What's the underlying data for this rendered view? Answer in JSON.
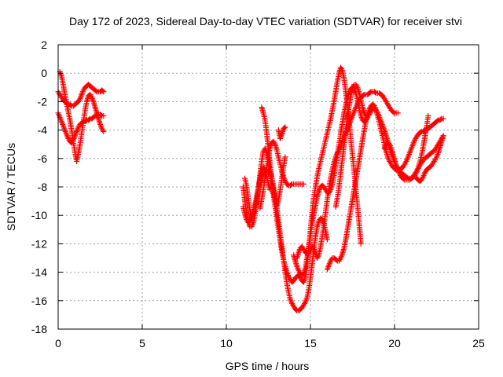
{
  "chart_data": {
    "type": "scatter",
    "title": "Day 172 of 2023, Sidereal Day-to-day VTEC variation (SDTVAR) for receiver stvi",
    "xlabel": "GPS time / hours",
    "ylabel": "SDTVAR / TECUs",
    "xlim": [
      0,
      25
    ],
    "ylim": [
      -18,
      2
    ],
    "xticks": [
      0,
      5,
      10,
      15,
      20,
      25
    ],
    "yticks": [
      2,
      0,
      -2,
      -4,
      -6,
      -8,
      -10,
      -12,
      -14,
      -16,
      -18
    ],
    "grid": true,
    "legend": "none",
    "marker": "plus",
    "color": "#ff0000",
    "series": [
      {
        "x": [
          0.0,
          0.1,
          0.2,
          0.3,
          0.4,
          0.5,
          0.6,
          0.7,
          0.8,
          0.9,
          1.0,
          1.1,
          1.2,
          1.3,
          1.4,
          1.5,
          1.6,
          1.7,
          1.8,
          1.9,
          2.0,
          2.1,
          2.2,
          2.3,
          2.4,
          2.5,
          2.6,
          2.7
        ],
        "y": [
          -1.3,
          -1.5,
          -1.7,
          -1.9,
          -2.0,
          -2.1,
          -2.2,
          -2.2,
          -2.3,
          -2.3,
          -2.2,
          -2.1,
          -2.0,
          -1.8,
          -1.5,
          -1.2,
          -1.0,
          -0.9,
          -0.8,
          -0.9,
          -1.0,
          -1.1,
          -1.2,
          -1.3,
          -1.3,
          -1.3,
          -1.2,
          -1.3
        ]
      },
      {
        "x": [
          0.0,
          0.1,
          0.2,
          0.3,
          0.4,
          0.5,
          0.6,
          0.7,
          0.8,
          0.9,
          1.0,
          1.1,
          1.2,
          1.3,
          1.4,
          1.5,
          1.6,
          1.7,
          1.8,
          1.9,
          2.0,
          2.1,
          2.2,
          2.3,
          2.4,
          2.5,
          2.6,
          2.7
        ],
        "y": [
          -2.8,
          -3.1,
          -3.4,
          -3.7,
          -4.0,
          -4.3,
          -4.6,
          -4.8,
          -4.9,
          -4.7,
          -4.4,
          -4.1,
          -3.8,
          -3.6,
          -3.5,
          -3.4,
          -3.4,
          -3.3,
          -3.3,
          -3.2,
          -3.2,
          -3.1,
          -3.0,
          -3.0,
          -2.9,
          -2.9,
          -3.0,
          -3.0
        ]
      },
      {
        "x": [
          0.1,
          0.2,
          0.3,
          0.4,
          0.5,
          0.6,
          0.7,
          0.8,
          0.9,
          1.0,
          1.1,
          1.2,
          1.3,
          1.4,
          1.5,
          1.6,
          1.7,
          1.8,
          1.9,
          2.0,
          2.1,
          2.2,
          2.3,
          2.4,
          2.5,
          2.6,
          2.7
        ],
        "y": [
          0.1,
          -0.2,
          -0.8,
          -1.5,
          -2.1,
          -2.7,
          -3.3,
          -4.0,
          -4.8,
          -5.6,
          -6.2,
          -5.7,
          -5.0,
          -4.2,
          -3.4,
          -2.6,
          -2.0,
          -1.6,
          -1.5,
          -1.7,
          -2.0,
          -2.4,
          -2.8,
          -3.2,
          -3.6,
          -3.9,
          -4.1
        ]
      },
      {
        "x": [
          11.0,
          11.1,
          11.2,
          11.3,
          11.4,
          11.5,
          11.6,
          11.7,
          11.8,
          11.9,
          12.0,
          12.1,
          12.2,
          12.3,
          12.4,
          12.5,
          12.6,
          12.7,
          12.8,
          12.9,
          13.0,
          13.1,
          13.2,
          13.3,
          13.4,
          13.5,
          13.6,
          13.7,
          13.8,
          13.9,
          14.0,
          14.1,
          14.2,
          14.3,
          14.4,
          14.5,
          14.6,
          14.7,
          14.8,
          14.9,
          15.0,
          15.1,
          15.2,
          15.3,
          15.4,
          15.5,
          15.6,
          15.7,
          15.8,
          15.9,
          16.0,
          16.1,
          16.2,
          16.3,
          16.4,
          16.5,
          16.6,
          16.7,
          16.8,
          16.9,
          17.0,
          17.1,
          17.2,
          17.3,
          17.4,
          17.5,
          17.6,
          17.7,
          17.8,
          17.9,
          18.0
        ],
        "y": [
          -8.0,
          -9.0,
          -9.8,
          -10.4,
          -10.8,
          -10.8,
          -10.5,
          -10.0,
          -9.2,
          -8.2,
          -7.2,
          -6.2,
          -5.5,
          -5.3,
          -5.6,
          -6.2,
          -7.0,
          -7.8,
          -8.6,
          -9.4,
          -10.2,
          -11.0,
          -11.8,
          -12.5,
          -13.1,
          -13.6,
          -14.0,
          -14.3,
          -14.5,
          -14.7,
          -14.6,
          -14.4,
          -14.3,
          -14.2,
          -14.4,
          -14.6,
          -14.7,
          -14.3,
          -13.5,
          -12.3,
          -11.0,
          -9.8,
          -8.8,
          -8.0,
          -7.3,
          -6.7,
          -6.2,
          -5.7,
          -5.2,
          -4.7,
          -4.2,
          -3.7,
          -3.2,
          -2.6,
          -2.0,
          -1.3,
          -0.6,
          0.0,
          0.4,
          0.2,
          -0.4,
          -1.3,
          -2.3,
          -3.4,
          -4.6,
          -5.8,
          -7.0,
          -8.2,
          -9.4,
          -10.6,
          -12.0
        ]
      },
      {
        "x": [
          11.0,
          11.1,
          11.2,
          11.3,
          11.4,
          11.5,
          11.6,
          11.7,
          11.8,
          11.9,
          12.0,
          12.1,
          12.2,
          12.3,
          12.4,
          12.5,
          12.6,
          12.7,
          12.8,
          12.9,
          13.0,
          13.1,
          13.2,
          13.3,
          13.4,
          13.5,
          13.6,
          13.7,
          13.8,
          13.9,
          14.0,
          14.1,
          14.2,
          14.3,
          14.4,
          14.5,
          14.6,
          14.7,
          14.8,
          14.9,
          15.0,
          15.1,
          15.2,
          15.3,
          15.4,
          15.5,
          15.6,
          15.7,
          15.8,
          15.9,
          16.0
        ],
        "y": [
          -9.4,
          -9.9,
          -10.3,
          -10.5,
          -10.4,
          -10.1,
          -9.7,
          -9.2,
          -8.7,
          -8.2,
          -7.8,
          -7.4,
          -7.1,
          -6.9,
          -6.8,
          -6.8,
          -7.0,
          -7.4,
          -8.0,
          -8.7,
          -9.5,
          -10.4,
          -11.3,
          -12.2,
          -13.1,
          -14.0,
          -14.8,
          -15.4,
          -15.9,
          -16.2,
          -16.4,
          -16.6,
          -16.7,
          -16.7,
          -16.6,
          -16.5,
          -16.3,
          -16.1,
          -15.8,
          -15.2,
          -14.4,
          -13.4,
          -12.4,
          -11.5,
          -10.8,
          -10.4,
          -10.2,
          -10.3,
          -10.6,
          -11.1,
          -11.7
        ]
      },
      {
        "x": [
          12.0,
          12.1,
          12.2,
          12.3,
          12.4,
          12.5,
          12.6,
          12.7,
          12.8,
          12.9,
          13.0,
          13.1,
          13.2,
          13.3,
          13.4,
          13.5,
          13.6,
          13.7,
          13.8,
          13.9,
          14.0,
          14.1,
          14.2,
          14.3,
          14.4,
          14.5,
          14.6
        ],
        "y": [
          -9.5,
          -8.9,
          -8.2,
          -7.4,
          -6.6,
          -5.8,
          -5.2,
          -4.9,
          -4.8,
          -5.0,
          -5.4,
          -5.9,
          -6.4,
          -6.9,
          -7.3,
          -7.6,
          -7.8,
          -7.9,
          -7.9,
          -7.8,
          -7.8,
          -7.8,
          -7.8,
          -7.8,
          -7.8,
          -7.8,
          -7.8
        ]
      },
      {
        "x": [
          12.1,
          12.2,
          12.3,
          12.4,
          12.5,
          12.6,
          12.7,
          12.8,
          12.9,
          13.0,
          13.1,
          13.2,
          13.3,
          13.4,
          13.5
        ],
        "y": [
          -2.4,
          -2.8,
          -3.3,
          -4.2,
          -5.3,
          -6.4,
          -7.4,
          -8.3,
          -9.0,
          -9.3,
          -8.9,
          -8.2,
          -7.4,
          -6.6,
          -5.9
        ]
      },
      {
        "x": [
          13.1,
          13.2,
          13.3,
          13.4,
          13.5
        ],
        "y": [
          -4.0,
          -4.6,
          -4.3,
          -3.9,
          -3.8
        ]
      },
      {
        "x": [
          11.1,
          11.2,
          11.3,
          11.4,
          11.5,
          11.6,
          11.7,
          11.8,
          11.9,
          12.0,
          12.1,
          12.2,
          12.3,
          12.4,
          12.5,
          12.6
        ],
        "y": [
          -7.4,
          -7.9,
          -8.8,
          -9.6,
          -10.1,
          -10.0,
          -9.6,
          -8.9,
          -8.1,
          -7.4,
          -6.9,
          -6.6,
          -6.8,
          -7.3,
          -7.8,
          -8.2
        ]
      },
      {
        "x": [
          14.2,
          14.3,
          14.4,
          14.5,
          14.6,
          14.7,
          14.8,
          14.9,
          15.0,
          15.1,
          15.2,
          15.3,
          15.4,
          15.5,
          15.6,
          15.7,
          15.8,
          15.9,
          16.0,
          16.1,
          16.2,
          16.3,
          16.4,
          16.5,
          16.6,
          16.7,
          16.8,
          16.9,
          17.0,
          17.1,
          17.2,
          17.3,
          17.4,
          17.5,
          17.6,
          17.7,
          17.8,
          17.9,
          18.0,
          18.1,
          18.2,
          18.3,
          18.4,
          18.5,
          18.6,
          18.7,
          18.8,
          18.9,
          19.0,
          19.1,
          19.2,
          19.3,
          19.4,
          19.5,
          19.6,
          19.7,
          19.8,
          19.9,
          20.0,
          20.1,
          20.2
        ],
        "y": [
          -13.0,
          -12.6,
          -12.3,
          -12.2,
          -12.4,
          -12.6,
          -12.7,
          -12.6,
          -12.4,
          -12.2,
          -12.3,
          -12.7,
          -13.0,
          -12.8,
          -12.2,
          -11.5,
          -10.7,
          -9.8,
          -8.9,
          -8.1,
          -7.4,
          -6.8,
          -6.3,
          -5.9,
          -5.6,
          -5.4,
          -5.1,
          -4.8,
          -4.5,
          -4.2,
          -3.9,
          -3.6,
          -3.3,
          -3.0,
          -2.7,
          -2.4,
          -2.1,
          -1.9,
          -1.7,
          -1.6,
          -1.5,
          -1.5,
          -1.5,
          -1.4,
          -1.3,
          -1.3,
          -1.3,
          -1.4,
          -1.4,
          -1.4,
          -1.5,
          -1.6,
          -1.8,
          -2.0,
          -2.2,
          -2.4,
          -2.6,
          -2.7,
          -2.8,
          -2.8,
          -2.8
        ]
      },
      {
        "x": [
          16.0,
          16.1,
          16.2,
          16.3,
          16.4,
          16.5,
          16.6,
          16.7,
          16.8,
          16.9,
          17.0,
          17.1,
          17.2,
          17.3,
          17.4,
          17.5,
          17.6,
          17.7,
          17.8,
          17.9,
          18.0,
          18.1,
          18.2,
          18.3,
          18.4,
          18.5,
          18.6,
          18.7,
          18.8,
          18.9,
          19.0,
          19.1,
          19.2,
          19.3,
          19.4,
          19.5,
          19.6,
          19.7,
          19.8,
          19.9,
          20.0,
          20.1,
          20.2,
          20.3,
          20.4,
          20.5,
          20.6,
          20.7,
          20.8,
          20.9,
          21.0,
          21.1,
          21.2,
          21.3,
          21.4,
          21.5,
          21.6,
          21.7,
          21.8,
          21.9,
          22.0,
          22.1,
          22.2,
          22.3,
          22.4,
          22.5,
          22.6,
          22.7,
          22.8,
          22.9
        ],
        "y": [
          -13.8,
          -13.5,
          -13.2,
          -13.0,
          -13.0,
          -13.1,
          -13.2,
          -13.2,
          -13.0,
          -12.7,
          -12.3,
          -11.7,
          -11.0,
          -10.3,
          -9.6,
          -8.9,
          -8.2,
          -7.5,
          -6.8,
          -6.1,
          -5.4,
          -4.7,
          -4.0,
          -3.4,
          -2.9,
          -2.5,
          -2.3,
          -2.2,
          -2.3,
          -2.6,
          -3.0,
          -3.5,
          -4.0,
          -4.5,
          -5.0,
          -5.5,
          -5.9,
          -6.2,
          -6.4,
          -6.6,
          -6.7,
          -6.8,
          -6.8,
          -6.8,
          -6.7,
          -6.6,
          -6.4,
          -6.2,
          -5.9,
          -5.6,
          -5.3,
          -5.0,
          -4.7,
          -4.5,
          -4.3,
          -4.2,
          -4.1,
          -4.1,
          -4.0,
          -4.0,
          -3.9,
          -3.8,
          -3.7,
          -3.6,
          -3.5,
          -3.4,
          -3.3,
          -3.3,
          -3.2,
          -3.2
        ]
      },
      {
        "x": [
          16.5,
          16.6,
          16.7,
          16.8,
          16.9,
          17.0,
          17.1,
          17.2,
          17.3,
          17.4,
          17.5,
          17.6,
          17.7,
          17.8,
          17.9,
          18.0,
          18.1,
          18.2,
          18.3,
          18.4,
          18.5,
          18.6,
          18.7,
          18.8,
          18.9,
          19.0,
          19.1,
          19.2,
          19.3,
          19.4,
          19.5,
          19.6,
          19.7,
          19.8,
          19.9,
          20.0,
          20.1,
          20.2,
          20.3,
          20.4,
          20.5,
          20.6,
          20.7,
          20.8,
          20.9,
          21.0,
          21.1,
          21.2,
          21.3,
          21.4,
          21.5,
          21.6,
          21.7,
          21.8,
          21.9,
          22.0
        ],
        "y": [
          -9.4,
          -8.8,
          -8.0,
          -7.0,
          -6.0,
          -5.0,
          -4.0,
          -3.1,
          -2.3,
          -1.6,
          -1.1,
          -0.8,
          -0.8,
          -1.0,
          -1.4,
          -1.9,
          -2.4,
          -2.8,
          -3.0,
          -3.0,
          -2.9,
          -2.7,
          -2.5,
          -2.5,
          -2.6,
          -2.8,
          -3.1,
          -3.4,
          -3.7,
          -4.0,
          -4.4,
          -4.8,
          -5.2,
          -5.6,
          -5.9,
          -6.2,
          -6.5,
          -6.7,
          -6.9,
          -7.0,
          -7.1,
          -7.2,
          -7.3,
          -7.4,
          -7.4,
          -7.4,
          -7.3,
          -7.2,
          -7.0,
          -6.7,
          -6.3,
          -5.8,
          -5.2,
          -4.5,
          -3.8,
          -3.0
        ]
      },
      {
        "x": [
          19.4,
          19.5,
          19.6,
          19.7,
          19.8,
          19.9,
          20.0,
          20.1,
          20.2,
          20.3,
          20.4,
          20.5,
          20.6,
          20.7,
          20.8,
          20.9,
          21.0,
          21.1,
          21.2,
          21.3,
          21.4,
          21.5,
          21.6,
          21.7,
          21.8,
          21.9,
          22.0,
          22.1,
          22.2,
          22.3,
          22.4,
          22.5,
          22.6,
          22.7,
          22.8,
          22.9
        ],
        "y": [
          -5.3,
          -5.0,
          -4.9,
          -5.0,
          -5.3,
          -5.7,
          -6.1,
          -6.5,
          -6.8,
          -7.1,
          -7.3,
          -7.4,
          -7.5,
          -7.5,
          -7.5,
          -7.5,
          -7.4,
          -7.3,
          -7.1,
          -6.9,
          -6.7,
          -6.5,
          -6.3,
          -6.1,
          -6.0,
          -5.9,
          -5.8,
          -5.7,
          -5.6,
          -5.5,
          -5.4,
          -5.2,
          -5.0,
          -4.8,
          -4.6,
          -4.4
        ]
      },
      {
        "x": [
          21.2,
          21.3,
          21.4,
          21.5,
          21.6,
          21.7,
          21.8,
          21.9,
          22.0,
          22.1,
          22.2,
          22.3,
          22.4,
          22.5,
          22.6,
          22.7,
          22.8,
          22.9
        ],
        "y": [
          -7.2,
          -7.4,
          -7.5,
          -7.6,
          -7.5,
          -7.3,
          -7.0,
          -6.8,
          -6.7,
          -6.6,
          -6.5,
          -6.3,
          -6.1,
          -5.9,
          -5.6,
          -5.2,
          -4.8,
          -4.4
        ]
      },
      {
        "x": [
          14.0,
          14.1,
          14.2,
          14.3,
          14.4,
          14.5,
          14.6,
          14.7,
          14.8,
          14.9,
          15.0,
          15.1,
          15.2,
          15.3,
          15.4,
          15.5,
          15.6,
          15.7,
          15.8,
          15.9,
          16.0,
          16.1,
          16.2,
          16.3,
          16.4,
          16.5,
          16.6,
          16.7,
          16.8,
          16.9,
          17.0,
          17.1,
          17.2,
          17.3,
          17.4,
          17.5,
          17.6,
          17.7,
          17.8,
          17.9,
          18.0,
          18.1,
          18.2,
          18.3,
          18.4
        ],
        "y": [
          -12.8,
          -13.2,
          -13.6,
          -13.9,
          -14.1,
          -14.2,
          -14.1,
          -13.7,
          -13.0,
          -12.2,
          -11.4,
          -10.6,
          -9.9,
          -9.3,
          -8.7,
          -8.3,
          -8.0,
          -7.9,
          -8.0,
          -8.2,
          -8.4,
          -8.4,
          -8.2,
          -7.8,
          -7.2,
          -6.5,
          -5.8,
          -5.0,
          -4.2,
          -3.5,
          -2.8,
          -2.2,
          -1.7,
          -1.3,
          -1.1,
          -1.0,
          -1.1,
          -1.4,
          -1.9,
          -2.5,
          -3.0,
          -3.3,
          -3.4,
          -3.3,
          -3.1
        ]
      }
    ]
  }
}
